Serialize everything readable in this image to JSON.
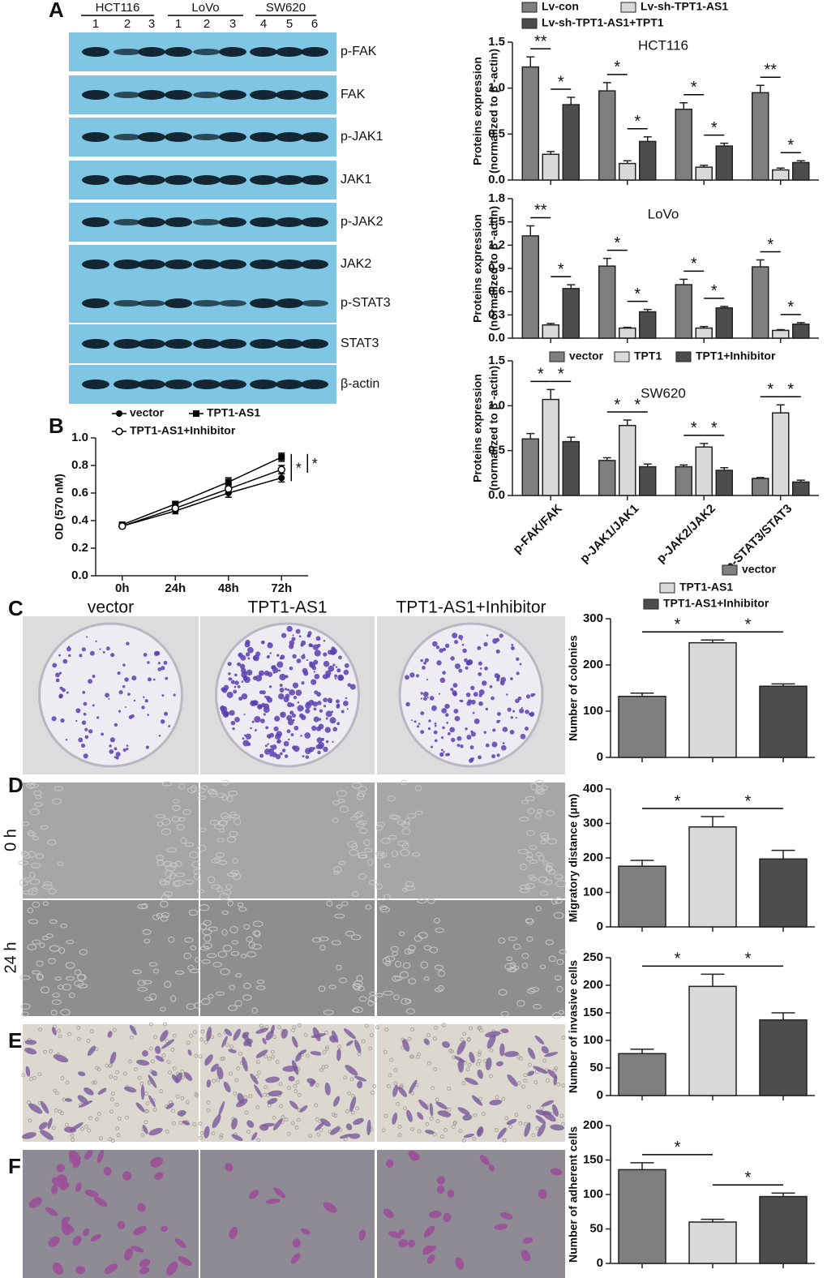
{
  "figure": {
    "panel_labels": [
      "A",
      "B",
      "C",
      "D",
      "E",
      "F"
    ],
    "blot": {
      "groups": [
        "HCT116",
        "LoVo",
        "SW620"
      ],
      "lanes": [
        "1",
        "2",
        "3",
        "1",
        "2",
        "3",
        "4",
        "5",
        "6"
      ],
      "proteins": [
        "p-FAK",
        "FAK",
        "p-JAK1",
        "JAK1",
        "p-JAK2",
        "JAK2",
        "p-STAT3",
        "STAT3",
        "β-actin"
      ]
    },
    "image_columns": [
      "vector",
      "TPT1-AS1",
      "TPT1-AS1+Inhibitor"
    ],
    "wound_rows": [
      "0 h",
      "24 h"
    ]
  },
  "chart_data": [
    {
      "type": "bar",
      "title": "HCT116",
      "ylabel": [
        "Proteins expression",
        "(normalized to β -actin)"
      ],
      "ylim": [
        0,
        1.5
      ],
      "yticks": [
        {
          "value": 0,
          "label": "0.0"
        },
        0.5,
        {
          "value": 1,
          "label": "1.0"
        },
        1.5
      ],
      "series": [
        {
          "name": "Lv-con",
          "color": "#7f7f7f",
          "values": [
            1.23,
            0.97,
            0.77,
            0.95
          ],
          "errors": [
            0.11,
            0.09,
            0.07,
            0.08
          ]
        },
        {
          "name": "Lv-sh-TPT1-AS1",
          "color": "#d9d9d9",
          "values": [
            0.28,
            0.18,
            0.14,
            0.11
          ],
          "errors": [
            0.03,
            0.03,
            0.02,
            0.02
          ]
        },
        {
          "name": "Lv-sh-TPT1-AS1+TPT1",
          "color": "#4d4d4d",
          "values": [
            0.82,
            0.42,
            0.37,
            0.19
          ],
          "errors": [
            0.08,
            0.05,
            0.03,
            0.02
          ]
        }
      ],
      "significance": [
        "**",
        "*",
        "*",
        "*",
        "*",
        "*",
        "**",
        "*"
      ]
    },
    {
      "type": "bar",
      "title": "LoVo",
      "ylabel": [
        "Proteins expression",
        "(normalized to β -actin)"
      ],
      "ylim": [
        0,
        1.8
      ],
      "yticks": [
        {
          "value": 0,
          "label": "0.0"
        },
        0.3,
        0.6,
        0.9,
        1.2,
        1.5,
        1.8
      ],
      "series": [
        {
          "color": "#7f7f7f",
          "values": [
            1.32,
            0.93,
            0.69,
            0.92
          ],
          "errors": [
            0.13,
            0.1,
            0.07,
            0.09
          ]
        },
        {
          "color": "#d9d9d9",
          "values": [
            0.17,
            0.13,
            0.13,
            0.1
          ],
          "errors": [
            0.02,
            0.01,
            0.02,
            0.01
          ]
        },
        {
          "color": "#4d4d4d",
          "values": [
            0.64,
            0.34,
            0.39,
            0.18
          ],
          "errors": [
            0.05,
            0.03,
            0.02,
            0.02
          ]
        }
      ],
      "significance": [
        "**",
        "*",
        "*",
        "*",
        "*",
        "*",
        "*",
        "*"
      ]
    },
    {
      "type": "bar",
      "title": "SW620",
      "ylabel": [
        "Proteins expression",
        "(normalized to β -actin)"
      ],
      "categories": [
        "p-FAK/FAK",
        "p-JAK1/JAK1",
        "p-JAK2/JAK2",
        "p-STAT3/STAT3"
      ],
      "ylim": [
        0,
        1.5
      ],
      "yticks": [
        {
          "value": 0,
          "label": "0.0"
        },
        0.5,
        {
          "value": 1,
          "label": "1.0"
        },
        1.5
      ],
      "series": [
        {
          "name": "vector",
          "color": "#7f7f7f",
          "values": [
            0.63,
            0.39,
            0.32,
            0.19
          ],
          "errors": [
            0.06,
            0.03,
            0.02,
            0.01
          ]
        },
        {
          "name": "TPT1",
          "color": "#d9d9d9",
          "values": [
            1.07,
            0.78,
            0.54,
            0.92
          ],
          "errors": [
            0.11,
            0.06,
            0.04,
            0.09
          ]
        },
        {
          "name": "TPT1+Inhibitor",
          "color": "#4d4d4d",
          "values": [
            0.6,
            0.32,
            0.28,
            0.15
          ],
          "errors": [
            0.05,
            0.03,
            0.03,
            0.02
          ]
        }
      ],
      "significance": [
        "*",
        "*",
        "*",
        "*",
        "*",
        "*",
        "*",
        "*"
      ]
    },
    {
      "type": "line",
      "ylabel": [
        "OD (570 nM)"
      ],
      "categories": [
        "0h",
        "24h",
        "48h",
        "72h"
      ],
      "ylim": [
        0,
        1
      ],
      "yticks": [
        {
          "value": 0,
          "label": "0.0"
        },
        0.2,
        0.4,
        0.6,
        0.8,
        {
          "value": 1,
          "label": "1.0"
        }
      ],
      "series": [
        {
          "name": "vector",
          "color": "#000000",
          "marker": "circle",
          "values": [
            0.36,
            0.47,
            0.6,
            0.71
          ],
          "errors": [
            0.01,
            0.02,
            0.03,
            0.03
          ]
        },
        {
          "name": "TPT1-AS1",
          "color": "#000000",
          "marker": "square",
          "values": [
            0.37,
            0.52,
            0.68,
            0.86
          ],
          "errors": [
            0.01,
            0.02,
            0.03,
            0.03
          ]
        },
        {
          "name": "TPT1-AS1+Inhibitor",
          "color": "#000000",
          "marker": "open-circle",
          "values": [
            0.36,
            0.49,
            0.63,
            0.77
          ],
          "errors": [
            0.01,
            0.02,
            0.03,
            0.03
          ]
        }
      ],
      "significance": [
        "*",
        "*"
      ]
    },
    {
      "type": "bar",
      "ylabel": [
        "Number of colonies"
      ],
      "ylim": [
        0,
        300
      ],
      "yticks": [
        0,
        100,
        200,
        300
      ],
      "series": [
        {
          "name": "vector",
          "color": "#7f7f7f",
          "values": [
            132
          ],
          "errors": [
            7
          ]
        },
        {
          "name": "TPT1-AS1",
          "color": "#d9d9d9",
          "values": [
            248
          ],
          "errors": [
            6
          ]
        },
        {
          "name": "TPT1-AS1+Inhibitor",
          "color": "#4d4d4d",
          "values": [
            154
          ],
          "errors": [
            5
          ]
        }
      ],
      "significance": [
        "*",
        "*"
      ]
    },
    {
      "type": "bar",
      "ylabel": [
        "Migratory distance (μm)"
      ],
      "ylim": [
        0,
        400
      ],
      "yticks": [
        0,
        100,
        200,
        300,
        400
      ],
      "series": [
        {
          "color": "#7f7f7f",
          "values": [
            176
          ],
          "errors": [
            17
          ]
        },
        {
          "color": "#d9d9d9",
          "values": [
            290
          ],
          "errors": [
            30
          ]
        },
        {
          "color": "#4d4d4d",
          "values": [
            197
          ],
          "errors": [
            25
          ]
        }
      ],
      "significance": [
        "*",
        "*"
      ]
    },
    {
      "type": "bar",
      "ylabel": [
        "Number of invasive cells"
      ],
      "ylim": [
        0,
        250
      ],
      "yticks": [
        0,
        50,
        100,
        150,
        200,
        250
      ],
      "series": [
        {
          "color": "#7f7f7f",
          "values": [
            76
          ],
          "errors": [
            8
          ]
        },
        {
          "color": "#d9d9d9",
          "values": [
            198
          ],
          "errors": [
            22
          ]
        },
        {
          "color": "#4d4d4d",
          "values": [
            137
          ],
          "errors": [
            13
          ]
        }
      ],
      "significance": [
        "*",
        "*"
      ]
    },
    {
      "type": "bar",
      "ylabel": [
        "Number of adherent cells"
      ],
      "ylim": [
        0,
        200
      ],
      "yticks": [
        0,
        50,
        100,
        150,
        200
      ],
      "series": [
        {
          "color": "#7f7f7f",
          "values": [
            136
          ],
          "errors": [
            10
          ]
        },
        {
          "color": "#d9d9d9",
          "values": [
            60
          ],
          "errors": [
            4
          ]
        },
        {
          "color": "#4d4d4d",
          "values": [
            97
          ],
          "errors": [
            5
          ]
        }
      ],
      "significance": [
        "*",
        "*"
      ]
    }
  ]
}
